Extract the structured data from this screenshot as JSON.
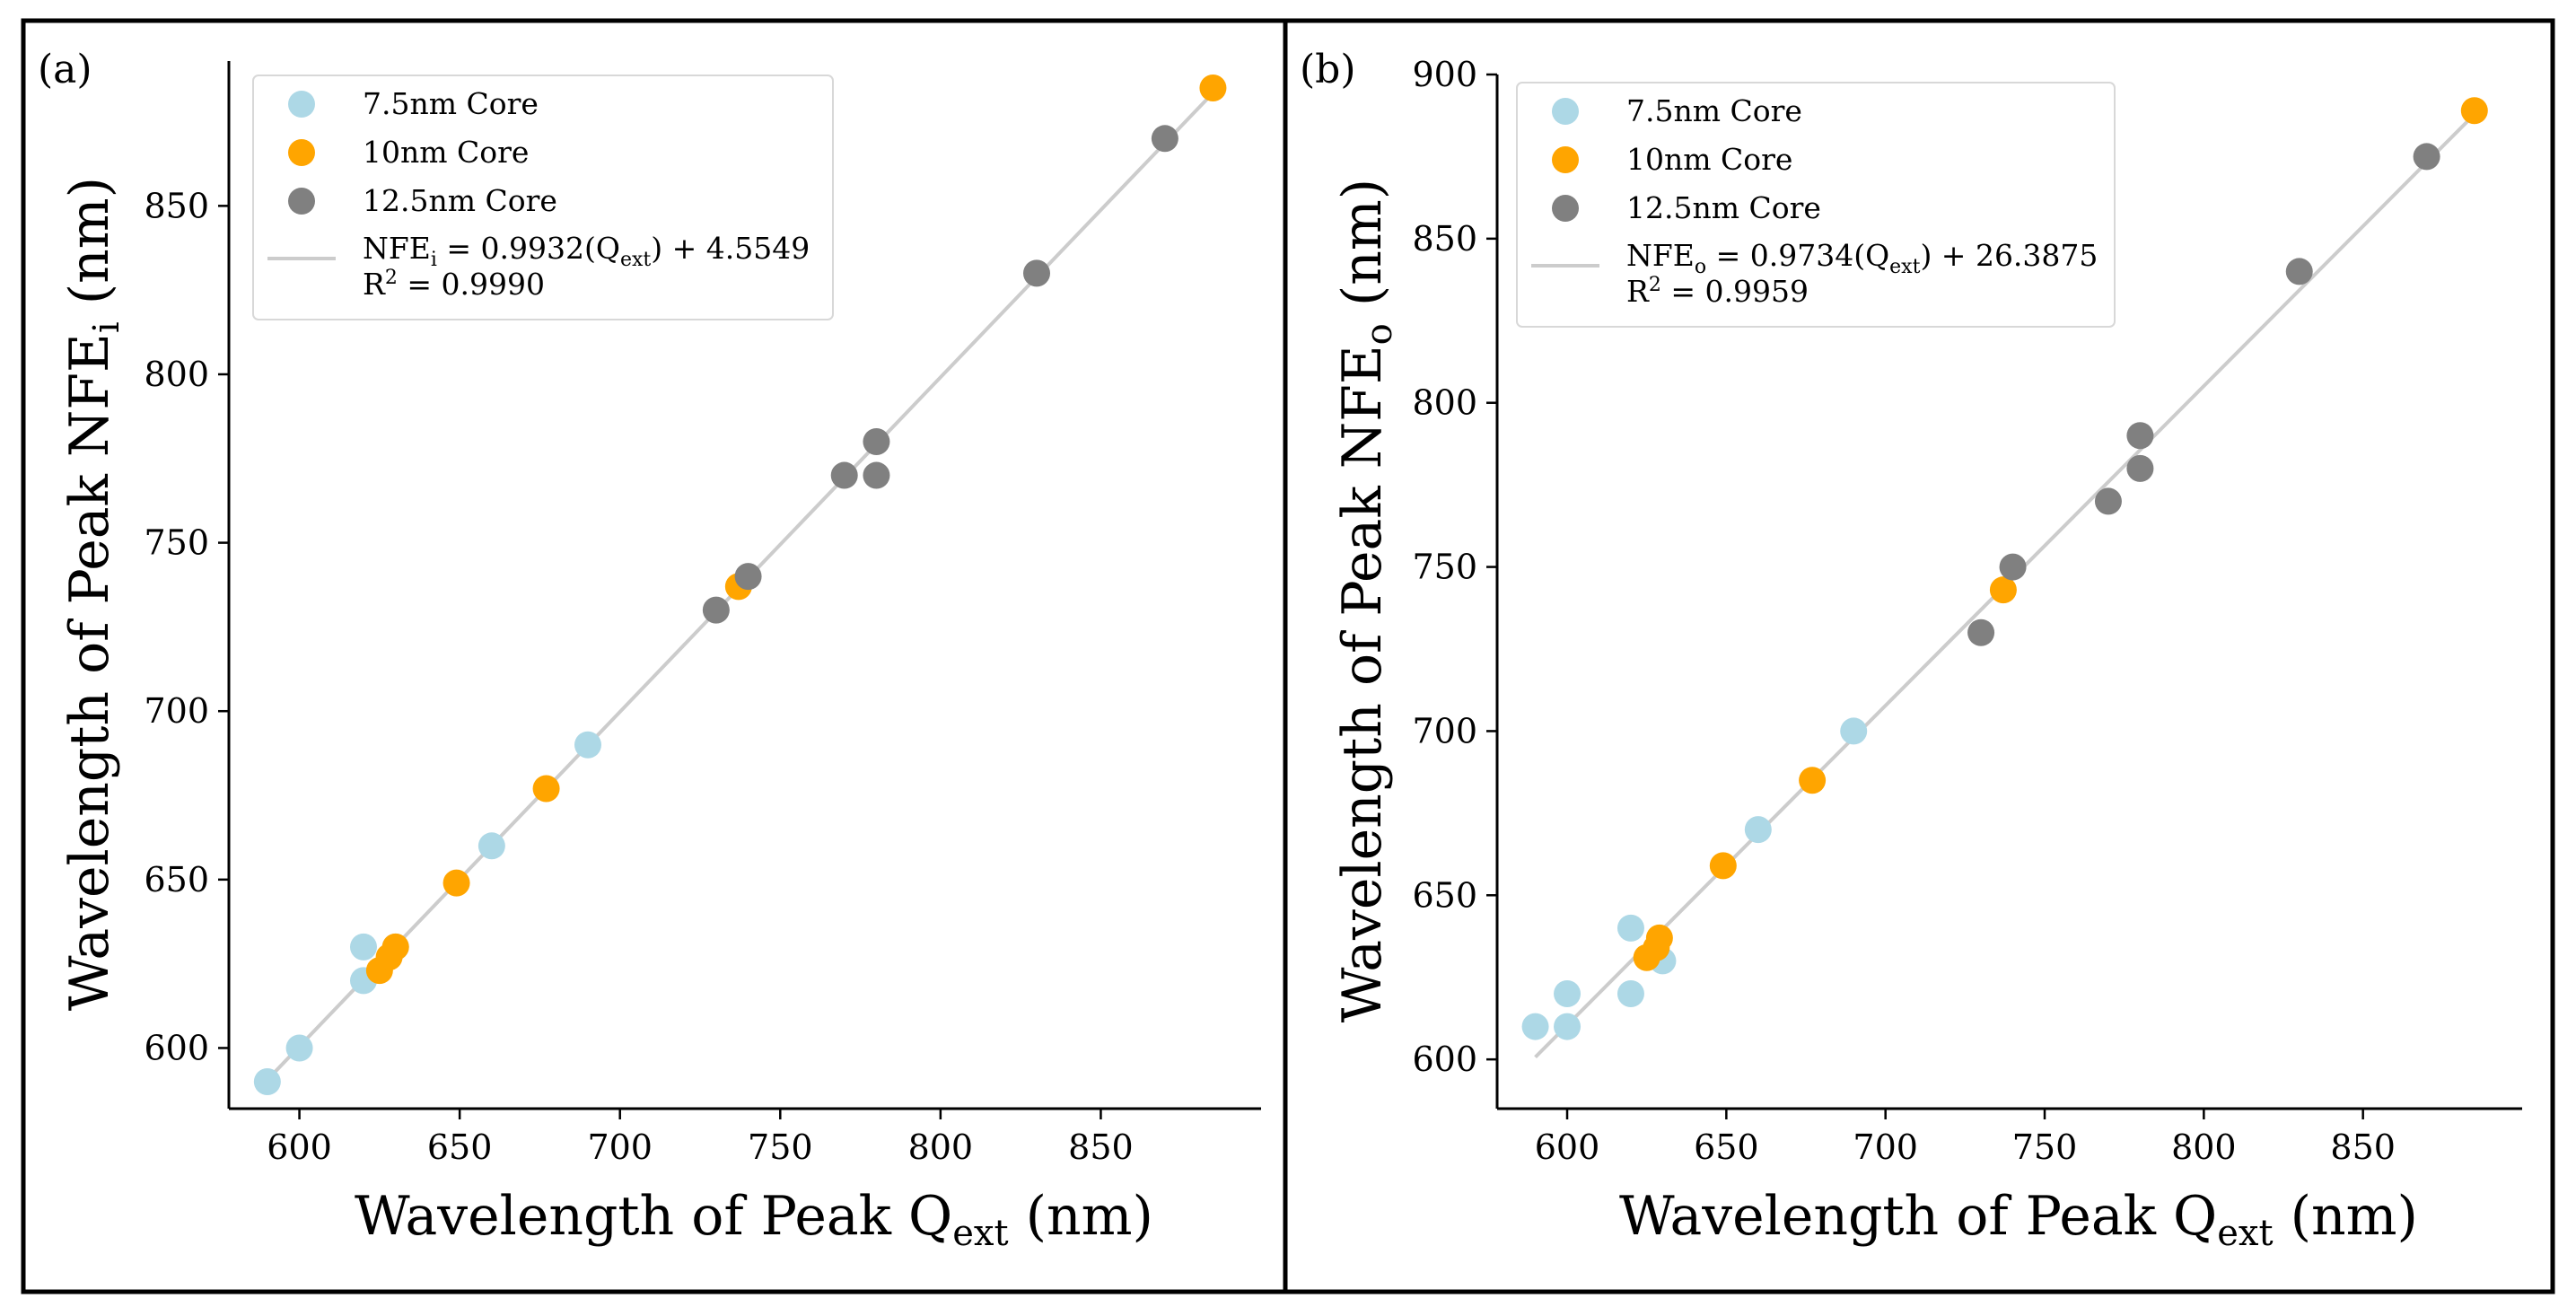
{
  "chart_data": [
    {
      "type": "scatter",
      "panel_label": "(a)",
      "xlabel": {
        "main": "Wavelength of Peak Q",
        "sub": "ext",
        "unit": " (nm)"
      },
      "ylabel": {
        "main": "Wavelength of Peak NFE",
        "sub": "i",
        "unit": " (nm)"
      },
      "xlim": [
        578,
        900
      ],
      "ylim": [
        582,
        893
      ],
      "xticks": [
        600,
        650,
        700,
        750,
        800,
        850
      ],
      "yticks": [
        600,
        650,
        700,
        750,
        800,
        850
      ],
      "legend_position": "upper-left",
      "series": [
        {
          "name": "7.5nm Core",
          "color": "#ADD8E6",
          "points": [
            [
              590,
              590
            ],
            [
              600,
              600
            ],
            [
              620,
              620
            ],
            [
              620,
              630
            ],
            [
              630,
              630
            ],
            [
              660,
              660
            ],
            [
              690,
              690
            ]
          ]
        },
        {
          "name": "10nm Core",
          "color": "#FFA500",
          "points": [
            [
              625,
              623
            ],
            [
              628,
              627
            ],
            [
              630,
              630
            ],
            [
              649,
              649
            ],
            [
              677,
              677
            ],
            [
              737,
              737
            ],
            [
              885,
              885
            ]
          ]
        },
        {
          "name": "12.5nm Core",
          "color": "#808080",
          "points": [
            [
              730,
              730
            ],
            [
              740,
              740
            ],
            [
              770,
              770
            ],
            [
              780,
              770
            ],
            [
              780,
              780
            ],
            [
              830,
              830
            ],
            [
              870,
              870
            ]
          ]
        }
      ],
      "fit": {
        "color": "#CCCCCC",
        "slope": 0.9932,
        "intercept": 4.5549,
        "x_range": [
          590,
          885
        ],
        "label_pre": "NFE",
        "label_pre_sub": "i",
        "label_mid": " = 0.9932(Q",
        "label_mid_sub": "ext",
        "label_end": ") + 4.5549",
        "r2_pre": "R",
        "r2_sup": "2",
        "r2_end": " = 0.9990"
      }
    },
    {
      "type": "scatter",
      "panel_label": "(b)",
      "xlabel": {
        "main": "Wavelength of Peak Q",
        "sub": "ext",
        "unit": " (nm)"
      },
      "ylabel": {
        "main": "Wavelength of Peak NFE",
        "sub": "o",
        "unit": " (nm)"
      },
      "xlim": [
        578,
        900
      ],
      "ylim": [
        585,
        900
      ],
      "xticks": [
        600,
        650,
        700,
        750,
        800,
        850
      ],
      "yticks": [
        600,
        650,
        700,
        750,
        800,
        850,
        900
      ],
      "legend_position": "upper-left",
      "series": [
        {
          "name": "7.5nm Core",
          "color": "#ADD8E6",
          "points": [
            [
              590,
              610
            ],
            [
              600,
              610
            ],
            [
              600,
              620
            ],
            [
              620,
              620
            ],
            [
              620,
              640
            ],
            [
              630,
              630
            ],
            [
              660,
              670
            ],
            [
              690,
              700
            ]
          ]
        },
        {
          "name": "10nm Core",
          "color": "#FFA500",
          "points": [
            [
              625,
              631
            ],
            [
              628,
              634
            ],
            [
              629,
              637
            ],
            [
              649,
              659
            ],
            [
              677,
              685
            ],
            [
              737,
              743
            ],
            [
              885,
              889
            ]
          ]
        },
        {
          "name": "12.5nm Core",
          "color": "#808080",
          "points": [
            [
              730,
              730
            ],
            [
              740,
              750
            ],
            [
              770,
              770
            ],
            [
              780,
              780
            ],
            [
              780,
              790
            ],
            [
              830,
              840
            ],
            [
              870,
              875
            ]
          ]
        }
      ],
      "fit": {
        "color": "#CCCCCC",
        "slope": 0.9734,
        "intercept": 26.3875,
        "x_range": [
          590,
          885
        ],
        "label_pre": "NFE",
        "label_pre_sub": "o",
        "label_mid": " = 0.9734(Q",
        "label_mid_sub": "ext",
        "label_end": ") + 26.3875",
        "r2_pre": "R",
        "r2_sup": "2",
        "r2_end": " = 0.9959"
      }
    }
  ]
}
